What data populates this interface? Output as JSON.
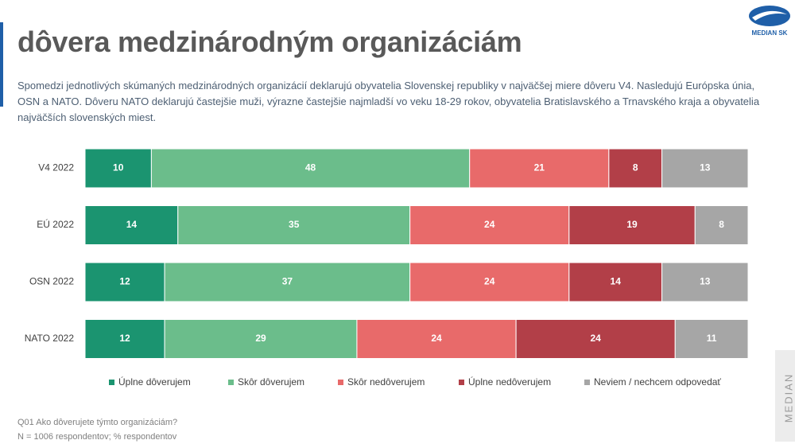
{
  "chart_data": {
    "type": "stacked-bar-horizontal",
    "title": "dôvera medzinárodným organizáciám",
    "subtitle": "Spomedzi jednotlivých skúmaných medzinárodných organizácií deklarujú obyvatelia Slovenskej republiky v najväčšej miere dôveru V4. Nasledujú Európska únia, OSN a NATO. Dôveru NATO deklarujú častejšie muži, výrazne častejšie najmladší vo veku 18-29 rokov, obyvatelia Bratislavského a Trnavského kraja a obyvatelia najväčších slovenských miest.",
    "categories": [
      "V4 2022",
      "EÚ 2022",
      "OSN 2022",
      "NATO 2022"
    ],
    "series": [
      {
        "name": "Úplne dôverujem",
        "color": "#1b9470",
        "values": [
          10,
          14,
          12,
          12
        ]
      },
      {
        "name": "Skôr dôverujem",
        "color": "#6bbd8b",
        "values": [
          48,
          35,
          37,
          29
        ]
      },
      {
        "name": "Skôr nedôverujem",
        "color": "#e86a6a",
        "values": [
          21,
          24,
          24,
          24
        ]
      },
      {
        "name": "Úplne nedôverujem",
        "color": "#b23f48",
        "values": [
          8,
          19,
          14,
          24
        ]
      },
      {
        "name": "Neviem / nechcem odpovedať",
        "color": "#a6a6a6",
        "values": [
          13,
          8,
          13,
          11
        ]
      }
    ],
    "xlim": [
      0,
      100
    ],
    "legend": "bottom",
    "footnotes": [
      "Q01 Ako dôverujete týmto organizáciám?",
      "N = 1006 respondentov; % respondentov"
    ],
    "logo": "MEDIAN SK",
    "side_label": "MEDIAN"
  }
}
